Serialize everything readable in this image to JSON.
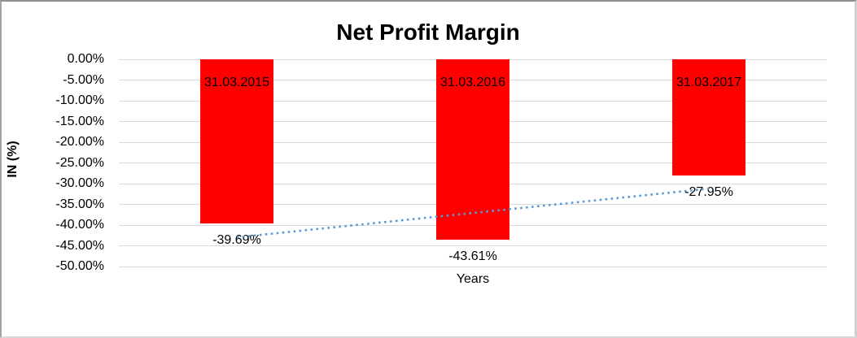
{
  "chart_data": {
    "type": "bar",
    "title": "Net Profit Margin",
    "xlabel": "Years",
    "ylabel": "IN (%)",
    "categories": [
      "31.03.2015",
      "31.03.2016",
      "31.03.2017"
    ],
    "values": [
      -39.69,
      -43.61,
      -27.95
    ],
    "value_labels": [
      "-39.69%",
      "-43.61%",
      "-27.95%"
    ],
    "ylim": [
      -50,
      0
    ],
    "ytick_step": 5,
    "ytick_labels": [
      "0.00%",
      "-5.00%",
      "-10.00%",
      "-15.00%",
      "-20.00%",
      "-25.00%",
      "-30.00%",
      "-35.00%",
      "-40.00%",
      "-45.00%",
      "-50.00%"
    ],
    "grid": true,
    "legend": "none",
    "bar_color": "#ff0000",
    "gridline_color": "#d9d9d9",
    "trendline": {
      "type": "linear",
      "style": "dotted",
      "color": "#5b9bd5"
    }
  }
}
